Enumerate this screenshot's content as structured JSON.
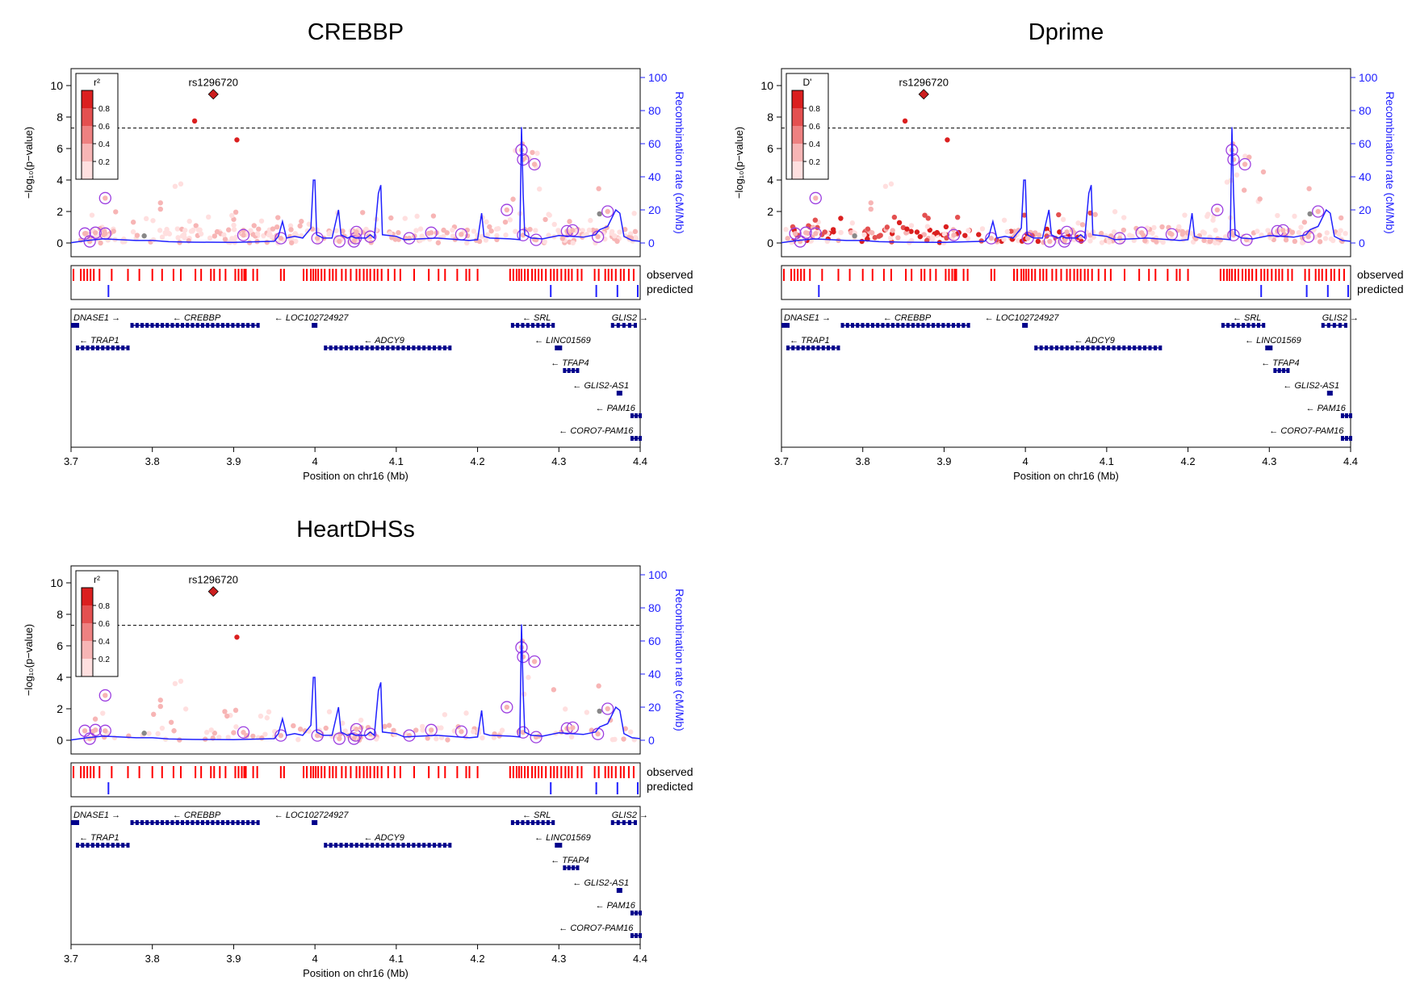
{
  "chart_data": {
    "panels": [
      {
        "title": "CREBBP",
        "legend_title": "r²",
        "mode": "r2",
        "points_seed": 11
      },
      {
        "title": "Dprime",
        "legend_title": "D'",
        "mode": "dprime",
        "points_seed": 23
      },
      {
        "title": "HeartDHSs",
        "legend_title": "r²",
        "mode": "heart",
        "points_seed": 37
      }
    ],
    "shared": {
      "type": "scatter",
      "lead_snp": {
        "label": "rs1296720",
        "x": 3.875,
        "y": 9.45
      },
      "significance_line": 7.3,
      "x_ticks": [
        3.7,
        3.8,
        3.9,
        4.0,
        4.1,
        4.2,
        4.3,
        4.4
      ],
      "x_tick_labels": [
        "3.7",
        "3.8",
        "3.9",
        "4",
        "4.1",
        "4.2",
        "4.3",
        "4.4"
      ],
      "xlim": [
        3.7,
        4.4
      ],
      "y_ticks": [
        0,
        2,
        4,
        6,
        8,
        10
      ],
      "ylim": [
        0,
        10.5
      ],
      "y2_ticks": [
        0,
        20,
        40,
        60,
        80,
        100
      ],
      "ylabel": "−log₁₀(p−value)",
      "y2label": "Recombination rate (cM/Mb)",
      "xlabel": "Position on chr16 (Mb)",
      "legend_ticks": [
        "0.8",
        "0.6",
        "0.4",
        "0.2"
      ],
      "track_labels": {
        "observed": "observed",
        "predicted": "predicted"
      },
      "colors": {
        "lead": "#cc1f1f",
        "recomb": "#2020ff",
        "ring": "#9c3ee0",
        "observed": "#ff0000",
        "predicted": "#2020ff",
        "gene": "#00008b",
        "r2_levels": [
          "#ffdfdf",
          "#f7b5b5",
          "#ee8181",
          "#e45050",
          "#db1f1f"
        ]
      },
      "named_points": [
        {
          "x": 3.852,
          "y": 7.75,
          "r2": 0.9
        },
        {
          "x": 3.904,
          "y": 6.55,
          "r2": 0.9
        },
        {
          "x": 4.255,
          "y": 6.3,
          "r2": 0.3
        },
        {
          "x": 3.835,
          "y": 3.75,
          "r2": 0.15
        },
        {
          "x": 3.828,
          "y": 3.6,
          "r2": 0.15
        },
        {
          "x": 3.81,
          "y": 2.55,
          "r2": 0.3
        },
        {
          "x": 3.81,
          "y": 2.15,
          "r2": 0.3
        },
        {
          "x": 4.349,
          "y": 3.45,
          "r2": 0.2
        },
        {
          "x": 3.79,
          "y": 0.45,
          "r2": -1
        },
        {
          "x": 4.35,
          "y": 1.85,
          "r2": -1
        }
      ],
      "ringed_points": [
        {
          "x": 3.717,
          "y": 0.6
        },
        {
          "x": 3.723,
          "y": 0.1
        },
        {
          "x": 3.73,
          "y": 0.65
        },
        {
          "x": 3.742,
          "y": 0.6
        },
        {
          "x": 3.742,
          "y": 2.85
        },
        {
          "x": 3.912,
          "y": 0.5
        },
        {
          "x": 3.958,
          "y": 0.3
        },
        {
          "x": 4.003,
          "y": 0.3
        },
        {
          "x": 4.03,
          "y": 0.1
        },
        {
          "x": 4.048,
          "y": 0.1
        },
        {
          "x": 4.05,
          "y": 0.3
        },
        {
          "x": 4.051,
          "y": 0.7
        },
        {
          "x": 4.068,
          "y": 0.4
        },
        {
          "x": 4.116,
          "y": 0.3
        },
        {
          "x": 4.143,
          "y": 0.65
        },
        {
          "x": 4.18,
          "y": 0.55
        },
        {
          "x": 4.236,
          "y": 2.1
        },
        {
          "x": 4.254,
          "y": 5.9
        },
        {
          "x": 4.256,
          "y": 5.3
        },
        {
          "x": 4.27,
          "y": 5.0
        },
        {
          "x": 4.256,
          "y": 0.5
        },
        {
          "x": 4.272,
          "y": 0.2
        },
        {
          "x": 4.31,
          "y": 0.75
        },
        {
          "x": 4.317,
          "y": 0.8
        },
        {
          "x": 4.348,
          "y": 0.4
        },
        {
          "x": 4.36,
          "y": 2.0
        }
      ],
      "recombination": [
        [
          3.7,
          0.2
        ],
        [
          3.72,
          1.5
        ],
        [
          3.74,
          2.5
        ],
        [
          3.76,
          2.0
        ],
        [
          3.78,
          1.5
        ],
        [
          3.8,
          1.5
        ],
        [
          3.82,
          0.8
        ],
        [
          3.85,
          0.5
        ],
        [
          3.9,
          0.4
        ],
        [
          3.95,
          1.0
        ],
        [
          3.955,
          4
        ],
        [
          3.96,
          13
        ],
        [
          3.962,
          9
        ],
        [
          3.965,
          3
        ],
        [
          3.975,
          4
        ],
        [
          3.985,
          3
        ],
        [
          3.995,
          9
        ],
        [
          3.998,
          38
        ],
        [
          4.0,
          38
        ],
        [
          4.002,
          5
        ],
        [
          4.01,
          3
        ],
        [
          4.018,
          3
        ],
        [
          4.021,
          3
        ],
        [
          4.029,
          20
        ],
        [
          4.032,
          5
        ],
        [
          4.04,
          3
        ],
        [
          4.045,
          4
        ],
        [
          4.05,
          3
        ],
        [
          4.063,
          3
        ],
        [
          4.068,
          5
        ],
        [
          4.073,
          3
        ],
        [
          4.078,
          30
        ],
        [
          4.081,
          35
        ],
        [
          4.083,
          5
        ],
        [
          4.1,
          4
        ],
        [
          4.11,
          2
        ],
        [
          4.15,
          3
        ],
        [
          4.19,
          1.5
        ],
        [
          4.2,
          2
        ],
        [
          4.205,
          18
        ],
        [
          4.208,
          4
        ],
        [
          4.215,
          3
        ],
        [
          4.24,
          2.5
        ],
        [
          4.252,
          2
        ],
        [
          4.254,
          70
        ],
        [
          4.256,
          30
        ],
        [
          4.258,
          5
        ],
        [
          4.266,
          3
        ],
        [
          4.28,
          2.5
        ],
        [
          4.3,
          4.5
        ],
        [
          4.33,
          3.5
        ],
        [
          4.345,
          5
        ],
        [
          4.35,
          8
        ],
        [
          4.36,
          10
        ],
        [
          4.37,
          20
        ],
        [
          4.375,
          18
        ],
        [
          4.38,
          4
        ],
        [
          4.39,
          1.5
        ],
        [
          4.4,
          1
        ]
      ],
      "observed_x": [
        3.703,
        3.712,
        3.716,
        3.72,
        3.724,
        3.728,
        3.735,
        3.75,
        3.77,
        3.784,
        3.8,
        3.812,
        3.826,
        3.835,
        3.853,
        3.86,
        3.872,
        3.876,
        3.883,
        3.89,
        3.902,
        3.906,
        3.91,
        3.913,
        3.915,
        3.924,
        3.929,
        3.958,
        3.962,
        3.986,
        3.99,
        3.995,
        3.998,
        4.001,
        4.004,
        4.008,
        4.012,
        4.018,
        4.022,
        4.026,
        4.033,
        4.038,
        4.044,
        4.051,
        4.055,
        4.06,
        4.064,
        4.068,
        4.073,
        4.077,
        4.082,
        4.09,
        4.098,
        4.105,
        4.122,
        4.14,
        4.152,
        4.16,
        4.175,
        4.186,
        4.19,
        4.2,
        4.24,
        4.244,
        4.248,
        4.251,
        4.254,
        4.258,
        4.262,
        4.267,
        4.271,
        4.275,
        4.279,
        4.284,
        4.29,
        4.294,
        4.298,
        4.303,
        4.308,
        4.312,
        4.316,
        4.323,
        4.328,
        4.344,
        4.349,
        4.357,
        4.361,
        4.365,
        4.37,
        4.376,
        4.38,
        4.386,
        4.392
      ],
      "predicted_x": [
        3.746,
        4.29,
        4.346,
        4.372,
        4.397
      ],
      "genes": [
        {
          "name": "DNASE1",
          "dir": "+",
          "start": 3.702,
          "end": 3.708,
          "row": 0,
          "label_x": 3.703
        },
        {
          "name": "CREBBP",
          "dir": "-",
          "start": 3.775,
          "end": 3.93,
          "row": 0,
          "label_x": 3.825
        },
        {
          "name": "LOC102724927",
          "dir": "-",
          "start": 3.998,
          "end": 4.001,
          "row": 0,
          "label_x": 3.95
        },
        {
          "name": "SRL",
          "dir": "-",
          "start": 4.243,
          "end": 4.293,
          "row": 0,
          "label_x": 4.255
        },
        {
          "name": "GLIS2",
          "dir": "+",
          "start": 4.366,
          "end": 4.394,
          "row": 0,
          "label_x": 4.365
        },
        {
          "name": "TRAP1",
          "dir": "-",
          "start": 3.708,
          "end": 3.77,
          "row": 1,
          "label_x": 3.71
        },
        {
          "name": "ADCY9",
          "dir": "-",
          "start": 4.013,
          "end": 4.166,
          "row": 1,
          "label_x": 4.06
        },
        {
          "name": "LINC01569",
          "dir": "-",
          "start": 4.297,
          "end": 4.302,
          "row": 1,
          "label_x": 4.27
        },
        {
          "name": "TFAP4",
          "dir": "-",
          "start": 4.307,
          "end": 4.323,
          "row": 2,
          "label_x": 4.29
        },
        {
          "name": "GLIS2-AS1",
          "dir": "-",
          "start": 4.373,
          "end": 4.376,
          "row": 3,
          "label_x": 4.317
        },
        {
          "name": "PAM16",
          "dir": "-",
          "start": 4.39,
          "end": 4.4,
          "row": 4,
          "label_x": 4.345
        },
        {
          "name": "CORO7-PAM16",
          "dir": "-",
          "start": 4.39,
          "end": 4.4,
          "row": 5,
          "label_x": 4.3
        }
      ]
    }
  }
}
